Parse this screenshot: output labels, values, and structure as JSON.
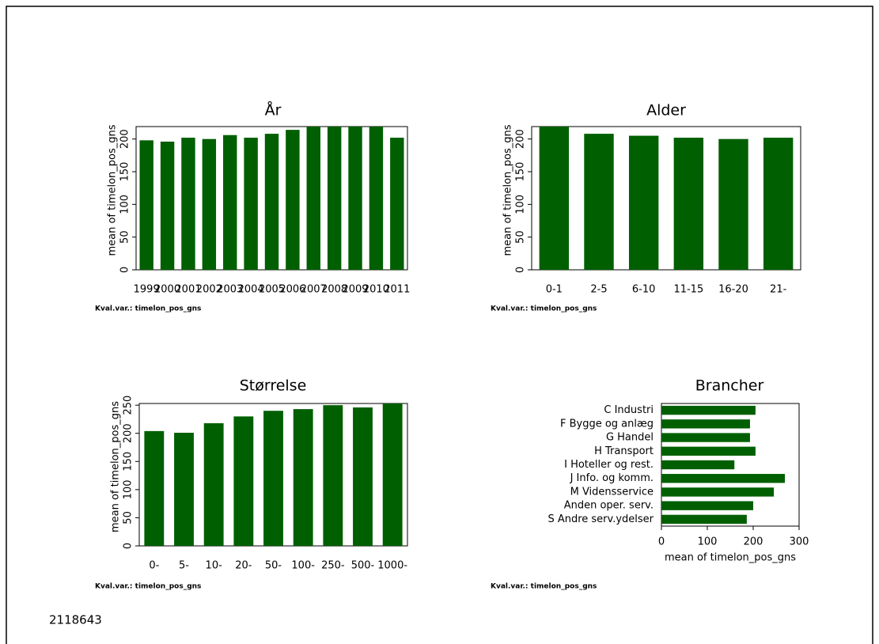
{
  "chart_data": [
    {
      "type": "bar",
      "title": "År",
      "ylabel": "mean of timelon_pos_gns",
      "note": "Kval.var.: timelon_pos_gns",
      "color": "#005f00",
      "categories": [
        "1999",
        "2000",
        "2001",
        "2002",
        "2003",
        "2004",
        "2005",
        "2006",
        "2007",
        "2008",
        "2009",
        "2010",
        "2011"
      ],
      "values": [
        198,
        196,
        202,
        200,
        206,
        202,
        208,
        214,
        219,
        219,
        219,
        219,
        202
      ],
      "ylim": [
        0,
        219
      ],
      "yticks": [
        0,
        50,
        100,
        150,
        200
      ]
    },
    {
      "type": "bar",
      "title": "Alder",
      "ylabel": "mean of timelon_pos_gns",
      "note": "Kval.var.: timelon_pos_gns",
      "color": "#005f00",
      "categories": [
        "0-1",
        "2-5",
        "6-10",
        "11-15",
        "16-20",
        "21-"
      ],
      "values": [
        219,
        208,
        205,
        202,
        200,
        202
      ],
      "ylim": [
        0,
        219
      ],
      "yticks": [
        0,
        50,
        100,
        150,
        200
      ]
    },
    {
      "type": "bar",
      "title": "Størrelse",
      "ylabel": "mean of timelon_pos_gns",
      "note": "Kval.var.: timelon_pos_gns",
      "color": "#005f00",
      "categories": [
        "0-",
        "5-",
        "10-",
        "20-",
        "50-",
        "100-",
        "250-",
        "500-",
        "1000-"
      ],
      "values": [
        204,
        201,
        218,
        230,
        240,
        243,
        250,
        246,
        253
      ],
      "ylim": [
        0,
        253
      ],
      "yticks": [
        0,
        50,
        100,
        150,
        200,
        250
      ]
    },
    {
      "type": "barh",
      "title": "Brancher",
      "xlabel": "mean of timelon_pos_gns",
      "note": "Kval.var.: timelon_pos_gns",
      "color": "#005f00",
      "categories": [
        "C Industri",
        "F Bygge og anlæg",
        "G Handel",
        "H Transport",
        "I Hoteller og rest.",
        "J Info. og komm.",
        "M Vidensservice",
        "Anden oper. serv.",
        "S Andre serv.ydelser"
      ],
      "values": [
        205,
        193,
        193,
        205,
        159,
        269,
        245,
        200,
        186
      ],
      "xlim": [
        0,
        300
      ],
      "xticks": [
        0,
        100,
        200,
        300
      ]
    }
  ],
  "footer": "2118643"
}
